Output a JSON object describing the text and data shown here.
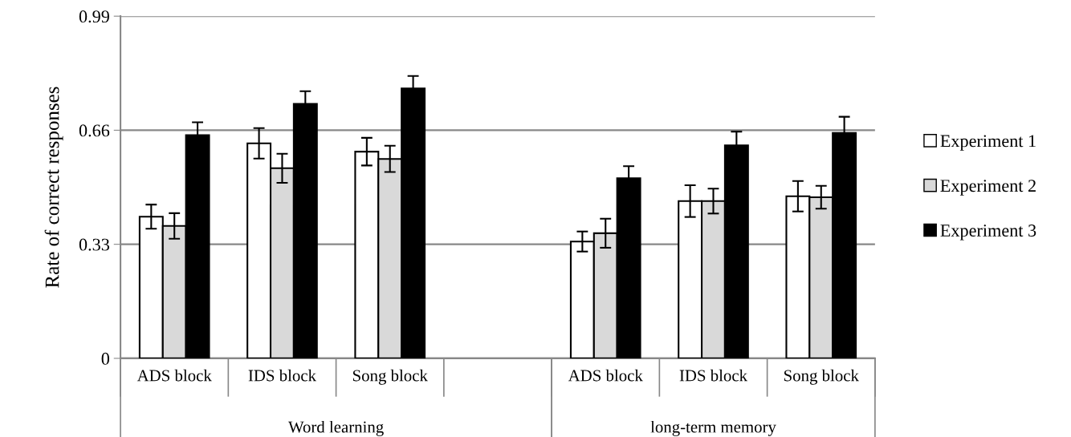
{
  "chart_data": {
    "type": "bar",
    "ylabel": "Rate of correct responses",
    "categories": [
      "ADS block",
      "IDS block",
      "Song block",
      null,
      "ADS block",
      "IDS block",
      "Song block"
    ],
    "series": [
      {
        "name": "Experiment 1",
        "color": "#ffffff",
        "values": [
          0.41,
          0.622,
          0.598,
          null,
          0.338,
          0.455,
          0.469
        ],
        "errors": [
          0.035,
          0.044,
          0.04,
          null,
          0.029,
          0.046,
          0.044
        ]
      },
      {
        "name": "Experiment 2",
        "color": "#d9d9d9",
        "values": [
          0.383,
          0.55,
          0.577,
          null,
          0.362,
          0.455,
          0.466
        ],
        "errors": [
          0.037,
          0.042,
          0.038,
          null,
          0.042,
          0.036,
          0.033
        ]
      },
      {
        "name": "Experiment 3",
        "color": "#000000",
        "values": [
          0.646,
          0.736,
          0.781,
          null,
          0.521,
          0.616,
          0.652
        ],
        "errors": [
          0.037,
          0.037,
          0.036,
          null,
          0.035,
          0.04,
          0.047
        ]
      }
    ],
    "ylim": [
      0,
      0.99
    ],
    "yticks": [
      0,
      0.33,
      0.66,
      0.99
    ],
    "grid": "y",
    "legend": "right",
    "marker": "square",
    "annotations": [
      "Word learning",
      "long-term memory"
    ]
  }
}
